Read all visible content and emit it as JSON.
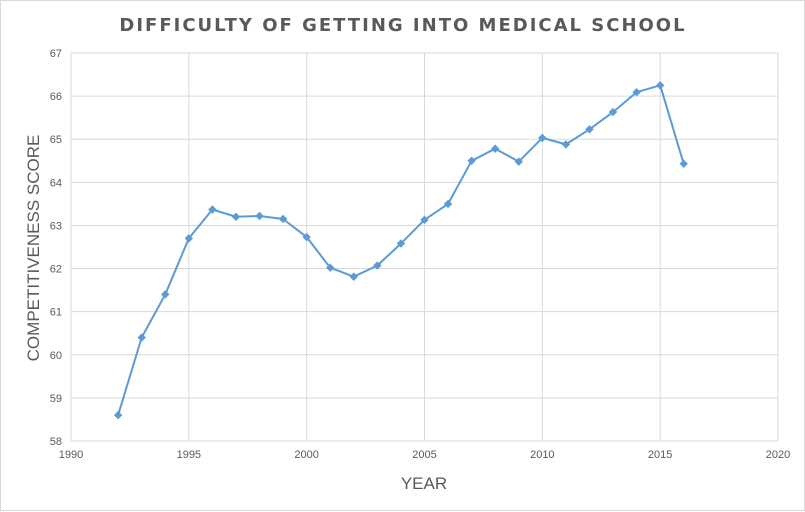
{
  "chart_data": {
    "type": "scatter",
    "title": "DIFFICULTY OF GETTING INTO MEDICAL SCHOOL",
    "xlabel": "YEAR",
    "ylabel": "COMPETITIVENESS SCORE",
    "xlim": [
      1990,
      2020
    ],
    "ylim": [
      58,
      67
    ],
    "xticks": [
      1990,
      1995,
      2000,
      2005,
      2010,
      2015,
      2020
    ],
    "yticks": [
      58,
      59,
      60,
      61,
      62,
      63,
      64,
      65,
      66,
      67
    ],
    "grid": true,
    "legend": "none",
    "series": [
      {
        "color": "#5b9bd5",
        "marker": "diamond",
        "x": [
          1992,
          1993,
          1994,
          1995,
          1996,
          1997,
          1998,
          1999,
          2000,
          2001,
          2002,
          2003,
          2004,
          2005,
          2006,
          2007,
          2008,
          2009,
          2010,
          2011,
          2012,
          2013,
          2014,
          2015,
          2016
        ],
        "y": [
          58.6,
          60.4,
          61.4,
          62.7,
          63.37,
          63.2,
          63.22,
          63.15,
          62.73,
          62.02,
          61.81,
          62.07,
          62.58,
          63.13,
          63.5,
          64.5,
          64.78,
          64.48,
          65.03,
          64.88,
          65.23,
          65.63,
          66.09,
          66.25,
          64.43
        ]
      }
    ]
  }
}
